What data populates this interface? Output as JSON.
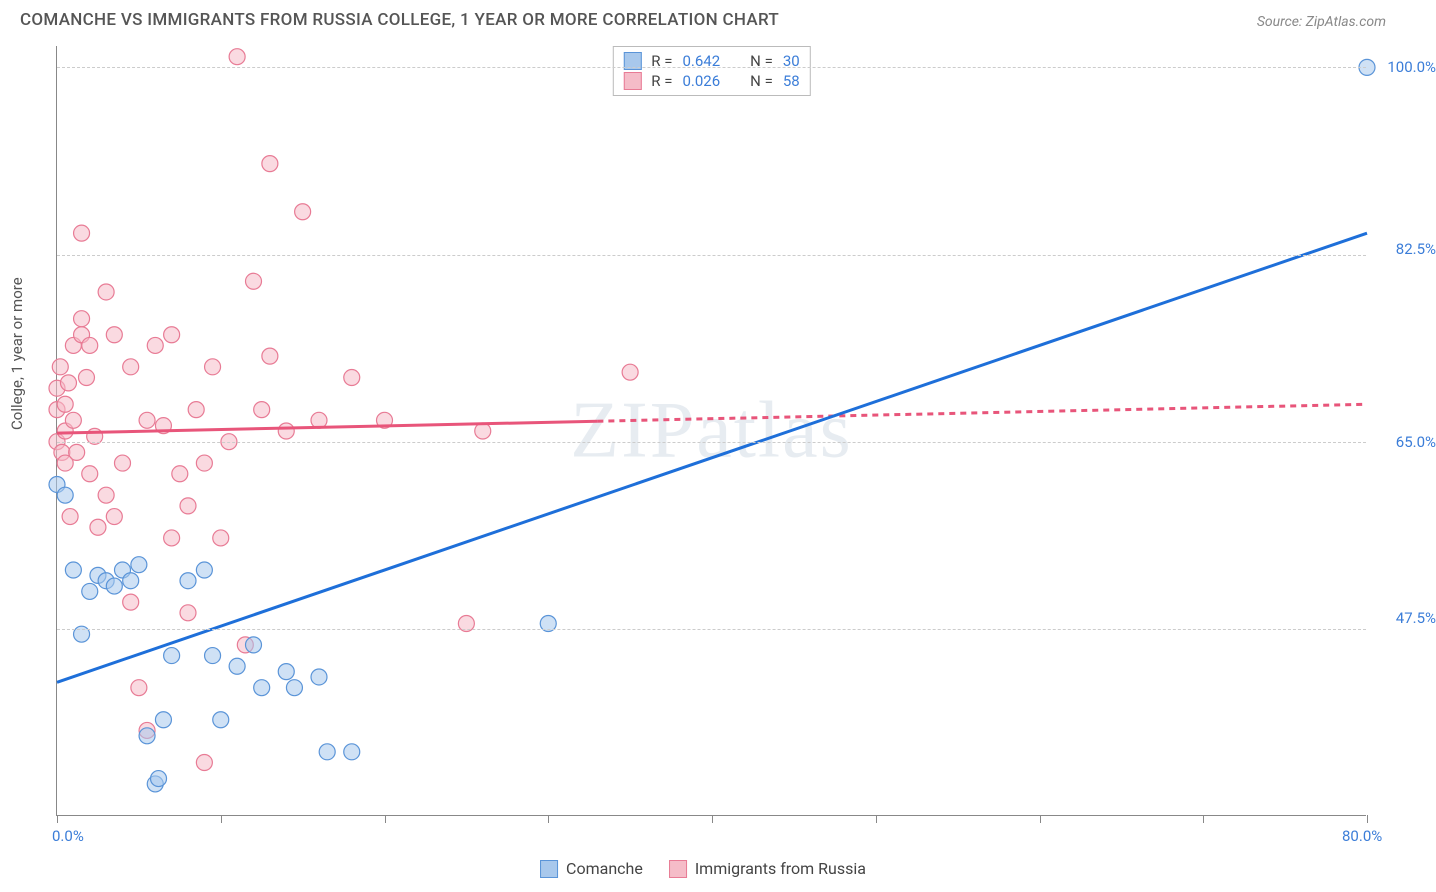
{
  "title": "COMANCHE VS IMMIGRANTS FROM RUSSIA COLLEGE, 1 YEAR OR MORE CORRELATION CHART",
  "source_label": "Source: ",
  "source_name": "ZipAtlas.com",
  "y_axis_label": "College, 1 year or more",
  "watermark": {
    "prefix": "ZIP",
    "suffix": "atlas"
  },
  "chart": {
    "type": "scatter",
    "background_color": "#ffffff",
    "grid_color": "#cccccc",
    "axis_color": "#888888",
    "xlim": [
      0,
      80
    ],
    "ylim": [
      30,
      102
    ],
    "x_ticks": [
      0,
      10,
      20,
      30,
      40,
      50,
      60,
      70,
      80
    ],
    "x_tick_labels": {
      "0": "0.0%",
      "80": "80.0%"
    },
    "y_gridlines": [
      47.5,
      65.0,
      82.5,
      100.0
    ],
    "y_tick_labels": [
      "47.5%",
      "65.0%",
      "82.5%",
      "100.0%"
    ],
    "y_label_positions": {
      "47.5": 48.5,
      "65.0": 65.0,
      "82.5": 83.0,
      "100.0": 99.0
    },
    "label_color": "#3b7dd8",
    "label_fontsize": 15,
    "title_fontsize": 17,
    "marker_radius": 8,
    "marker_opacity": 0.55,
    "line_width": 3
  },
  "series": {
    "comanche": {
      "label": "Comanche",
      "color_fill": "#a8c8ec",
      "color_stroke": "#5a94d8",
      "r_label": "R = ",
      "r_value": "0.642",
      "n_label": "N = ",
      "n_value": "30",
      "trend": {
        "x1": 0,
        "y1": 42.5,
        "x2": 80,
        "y2": 84.5,
        "color": "#1e6fd9",
        "dash": "none"
      },
      "points": [
        [
          0,
          61
        ],
        [
          0.5,
          60
        ],
        [
          1,
          53
        ],
        [
          1.5,
          47
        ],
        [
          2,
          51
        ],
        [
          2.5,
          52.5
        ],
        [
          3,
          52
        ],
        [
          3.5,
          51.5
        ],
        [
          4,
          53
        ],
        [
          4.5,
          52
        ],
        [
          5,
          53.5
        ],
        [
          5.5,
          37.5
        ],
        [
          6,
          33
        ],
        [
          6.2,
          33.5
        ],
        [
          6.5,
          39
        ],
        [
          7,
          45
        ],
        [
          8,
          52
        ],
        [
          9,
          53
        ],
        [
          9.5,
          45
        ],
        [
          10,
          39
        ],
        [
          11,
          44
        ],
        [
          12,
          46
        ],
        [
          12.5,
          42
        ],
        [
          14,
          43.5
        ],
        [
          14.5,
          42
        ],
        [
          16,
          43
        ],
        [
          16.5,
          36
        ],
        [
          18,
          36
        ],
        [
          30,
          48
        ],
        [
          80,
          100
        ]
      ]
    },
    "russia": {
      "label": "Immigrants from Russia",
      "color_fill": "#f5bcc8",
      "color_stroke": "#e87b95",
      "r_label": "R = ",
      "r_value": "0.026",
      "n_label": "N = ",
      "n_value": "58",
      "trend": {
        "x1": 0,
        "y1": 65.8,
        "x2": 80,
        "y2": 68.5,
        "color": "#e8557a",
        "dash_after": 33
      },
      "points": [
        [
          0,
          70
        ],
        [
          0,
          68
        ],
        [
          0,
          65
        ],
        [
          0.2,
          72
        ],
        [
          0.3,
          64
        ],
        [
          0.5,
          63
        ],
        [
          0.5,
          66
        ],
        [
          0.5,
          68.5
        ],
        [
          0.7,
          70.5
        ],
        [
          0.8,
          58
        ],
        [
          1,
          74
        ],
        [
          1,
          67
        ],
        [
          1.2,
          64
        ],
        [
          1.5,
          84.5
        ],
        [
          1.5,
          75
        ],
        [
          1.5,
          76.5
        ],
        [
          1.8,
          71
        ],
        [
          2,
          62
        ],
        [
          2,
          74
        ],
        [
          2.3,
          65.5
        ],
        [
          2.5,
          57
        ],
        [
          3,
          79
        ],
        [
          3,
          60
        ],
        [
          3.5,
          58
        ],
        [
          3.5,
          75
        ],
        [
          4,
          63
        ],
        [
          4.5,
          72
        ],
        [
          4.5,
          50
        ],
        [
          5,
          42
        ],
        [
          5.5,
          67
        ],
        [
          5.5,
          38
        ],
        [
          6,
          74
        ],
        [
          6.5,
          66.5
        ],
        [
          7,
          56
        ],
        [
          7,
          75
        ],
        [
          7.5,
          62
        ],
        [
          8,
          59
        ],
        [
          8,
          49
        ],
        [
          8.5,
          68
        ],
        [
          9,
          63
        ],
        [
          9,
          35
        ],
        [
          9.5,
          72
        ],
        [
          10,
          56
        ],
        [
          10.5,
          65
        ],
        [
          11,
          101
        ],
        [
          11.5,
          46
        ],
        [
          12,
          80
        ],
        [
          12.5,
          68
        ],
        [
          13,
          91
        ],
        [
          13,
          73
        ],
        [
          14,
          66
        ],
        [
          15,
          86.5
        ],
        [
          16,
          67
        ],
        [
          18,
          71
        ],
        [
          20,
          67
        ],
        [
          25,
          48
        ],
        [
          26,
          66
        ],
        [
          35,
          71.5
        ]
      ]
    }
  }
}
